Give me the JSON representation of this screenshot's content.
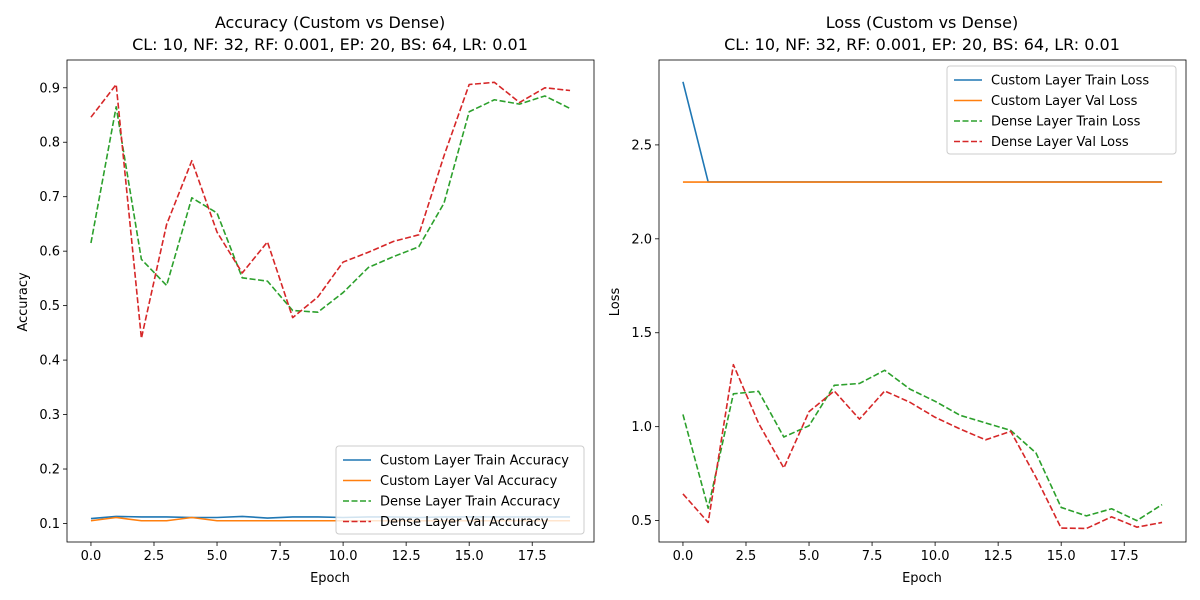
{
  "chart_data": [
    {
      "type": "line",
      "title_line1": "Accuracy (Custom vs Dense)",
      "title_line2": "CL: 10, NF: 32, RF: 0.001, EP: 20, BS: 64, LR: 0.01",
      "xlabel": "Epoch",
      "ylabel": "Accuracy",
      "xlim": [
        -0.95,
        19.95
      ],
      "ylim": [
        0.066,
        0.951
      ],
      "xticks": [
        "0.0",
        "2.5",
        "5.0",
        "7.5",
        "10.0",
        "12.5",
        "15.0",
        "17.5"
      ],
      "xtick_values": [
        0,
        2.5,
        5,
        7.5,
        10,
        12.5,
        15,
        17.5
      ],
      "yticks": [
        "0.1",
        "0.2",
        "0.3",
        "0.4",
        "0.5",
        "0.6",
        "0.7",
        "0.8",
        "0.9"
      ],
      "ytick_values": [
        0.1,
        0.2,
        0.3,
        0.4,
        0.5,
        0.6,
        0.7,
        0.8,
        0.9
      ],
      "legend_position": "lower-right",
      "x": [
        0,
        1,
        2,
        3,
        4,
        5,
        6,
        7,
        8,
        9,
        10,
        11,
        12,
        13,
        14,
        15,
        16,
        17,
        18,
        19
      ],
      "series": [
        {
          "name": "Custom Layer Train Accuracy",
          "color": "#1f77b4",
          "dash": "solid",
          "values": [
            0.109,
            0.113,
            0.112,
            0.112,
            0.111,
            0.111,
            0.113,
            0.11,
            0.112,
            0.112,
            0.111,
            0.112,
            0.112,
            0.111,
            0.112,
            0.112,
            0.112,
            0.112,
            0.112,
            0.112
          ]
        },
        {
          "name": "Custom Layer Val Accuracy",
          "color": "#ff7f0e",
          "dash": "solid",
          "values": [
            0.105,
            0.111,
            0.105,
            0.105,
            0.111,
            0.105,
            0.105,
            0.105,
            0.105,
            0.105,
            0.105,
            0.105,
            0.105,
            0.105,
            0.105,
            0.105,
            0.105,
            0.105,
            0.105,
            0.105
          ]
        },
        {
          "name": "Dense Layer Train Accuracy",
          "color": "#2ca02c",
          "dash": "dashed",
          "values": [
            0.615,
            0.865,
            0.585,
            0.537,
            0.698,
            0.67,
            0.551,
            0.545,
            0.491,
            0.488,
            0.524,
            0.57,
            0.59,
            0.608,
            0.688,
            0.856,
            0.878,
            0.87,
            0.885,
            0.862
          ]
        },
        {
          "name": "Dense Layer Val Accuracy",
          "color": "#d62728",
          "dash": "dashed",
          "values": [
            0.846,
            0.906,
            0.44,
            0.649,
            0.766,
            0.635,
            0.56,
            0.617,
            0.478,
            0.516,
            0.58,
            0.598,
            0.618,
            0.63,
            0.775,
            0.906,
            0.91,
            0.873,
            0.9,
            0.895
          ]
        }
      ]
    },
    {
      "type": "line",
      "title_line1": "Loss (Custom vs Dense)",
      "title_line2": "CL: 10, NF: 32, RF: 0.001, EP: 20, BS: 64, LR: 0.01",
      "xlabel": "Epoch",
      "ylabel": "Loss",
      "xlim": [
        -0.95,
        19.95
      ],
      "ylim": [
        0.386,
        2.952
      ],
      "xticks": [
        "0.0",
        "2.5",
        "5.0",
        "7.5",
        "10.0",
        "12.5",
        "15.0",
        "17.5"
      ],
      "xtick_values": [
        0,
        2.5,
        5,
        7.5,
        10,
        12.5,
        15,
        17.5
      ],
      "yticks": [
        "0.5",
        "1.0",
        "1.5",
        "2.0",
        "2.5"
      ],
      "ytick_values": [
        0.5,
        1.0,
        1.5,
        2.0,
        2.5
      ],
      "legend_position": "upper-right",
      "x": [
        0,
        1,
        2,
        3,
        4,
        5,
        6,
        7,
        8,
        9,
        10,
        11,
        12,
        13,
        14,
        15,
        16,
        17,
        18,
        19
      ],
      "series": [
        {
          "name": "Custom Layer Train Loss",
          "color": "#1f77b4",
          "dash": "solid",
          "values": [
            2.836,
            2.303,
            2.303,
            2.303,
            2.303,
            2.303,
            2.303,
            2.303,
            2.303,
            2.303,
            2.303,
            2.303,
            2.303,
            2.303,
            2.303,
            2.303,
            2.303,
            2.303,
            2.303,
            2.303
          ]
        },
        {
          "name": "Custom Layer Val Loss",
          "color": "#ff7f0e",
          "dash": "solid",
          "values": [
            2.302,
            2.302,
            2.302,
            2.302,
            2.302,
            2.302,
            2.302,
            2.302,
            2.302,
            2.302,
            2.302,
            2.302,
            2.302,
            2.302,
            2.302,
            2.302,
            2.302,
            2.302,
            2.302,
            2.302
          ]
        },
        {
          "name": "Dense Layer Train Loss",
          "color": "#2ca02c",
          "dash": "dashed",
          "values": [
            1.065,
            0.566,
            1.175,
            1.188,
            0.945,
            1.005,
            1.22,
            1.23,
            1.3,
            1.2,
            1.135,
            1.06,
            1.02,
            0.98,
            0.86,
            0.57,
            0.525,
            0.563,
            0.5,
            0.585
          ]
        },
        {
          "name": "Dense Layer Val Loss",
          "color": "#d62728",
          "dash": "dashed",
          "values": [
            0.642,
            0.49,
            1.33,
            1.018,
            0.78,
            1.08,
            1.19,
            1.04,
            1.19,
            1.13,
            1.05,
            0.987,
            0.93,
            0.975,
            0.73,
            0.46,
            0.458,
            0.52,
            0.465,
            0.49
          ]
        }
      ]
    }
  ]
}
